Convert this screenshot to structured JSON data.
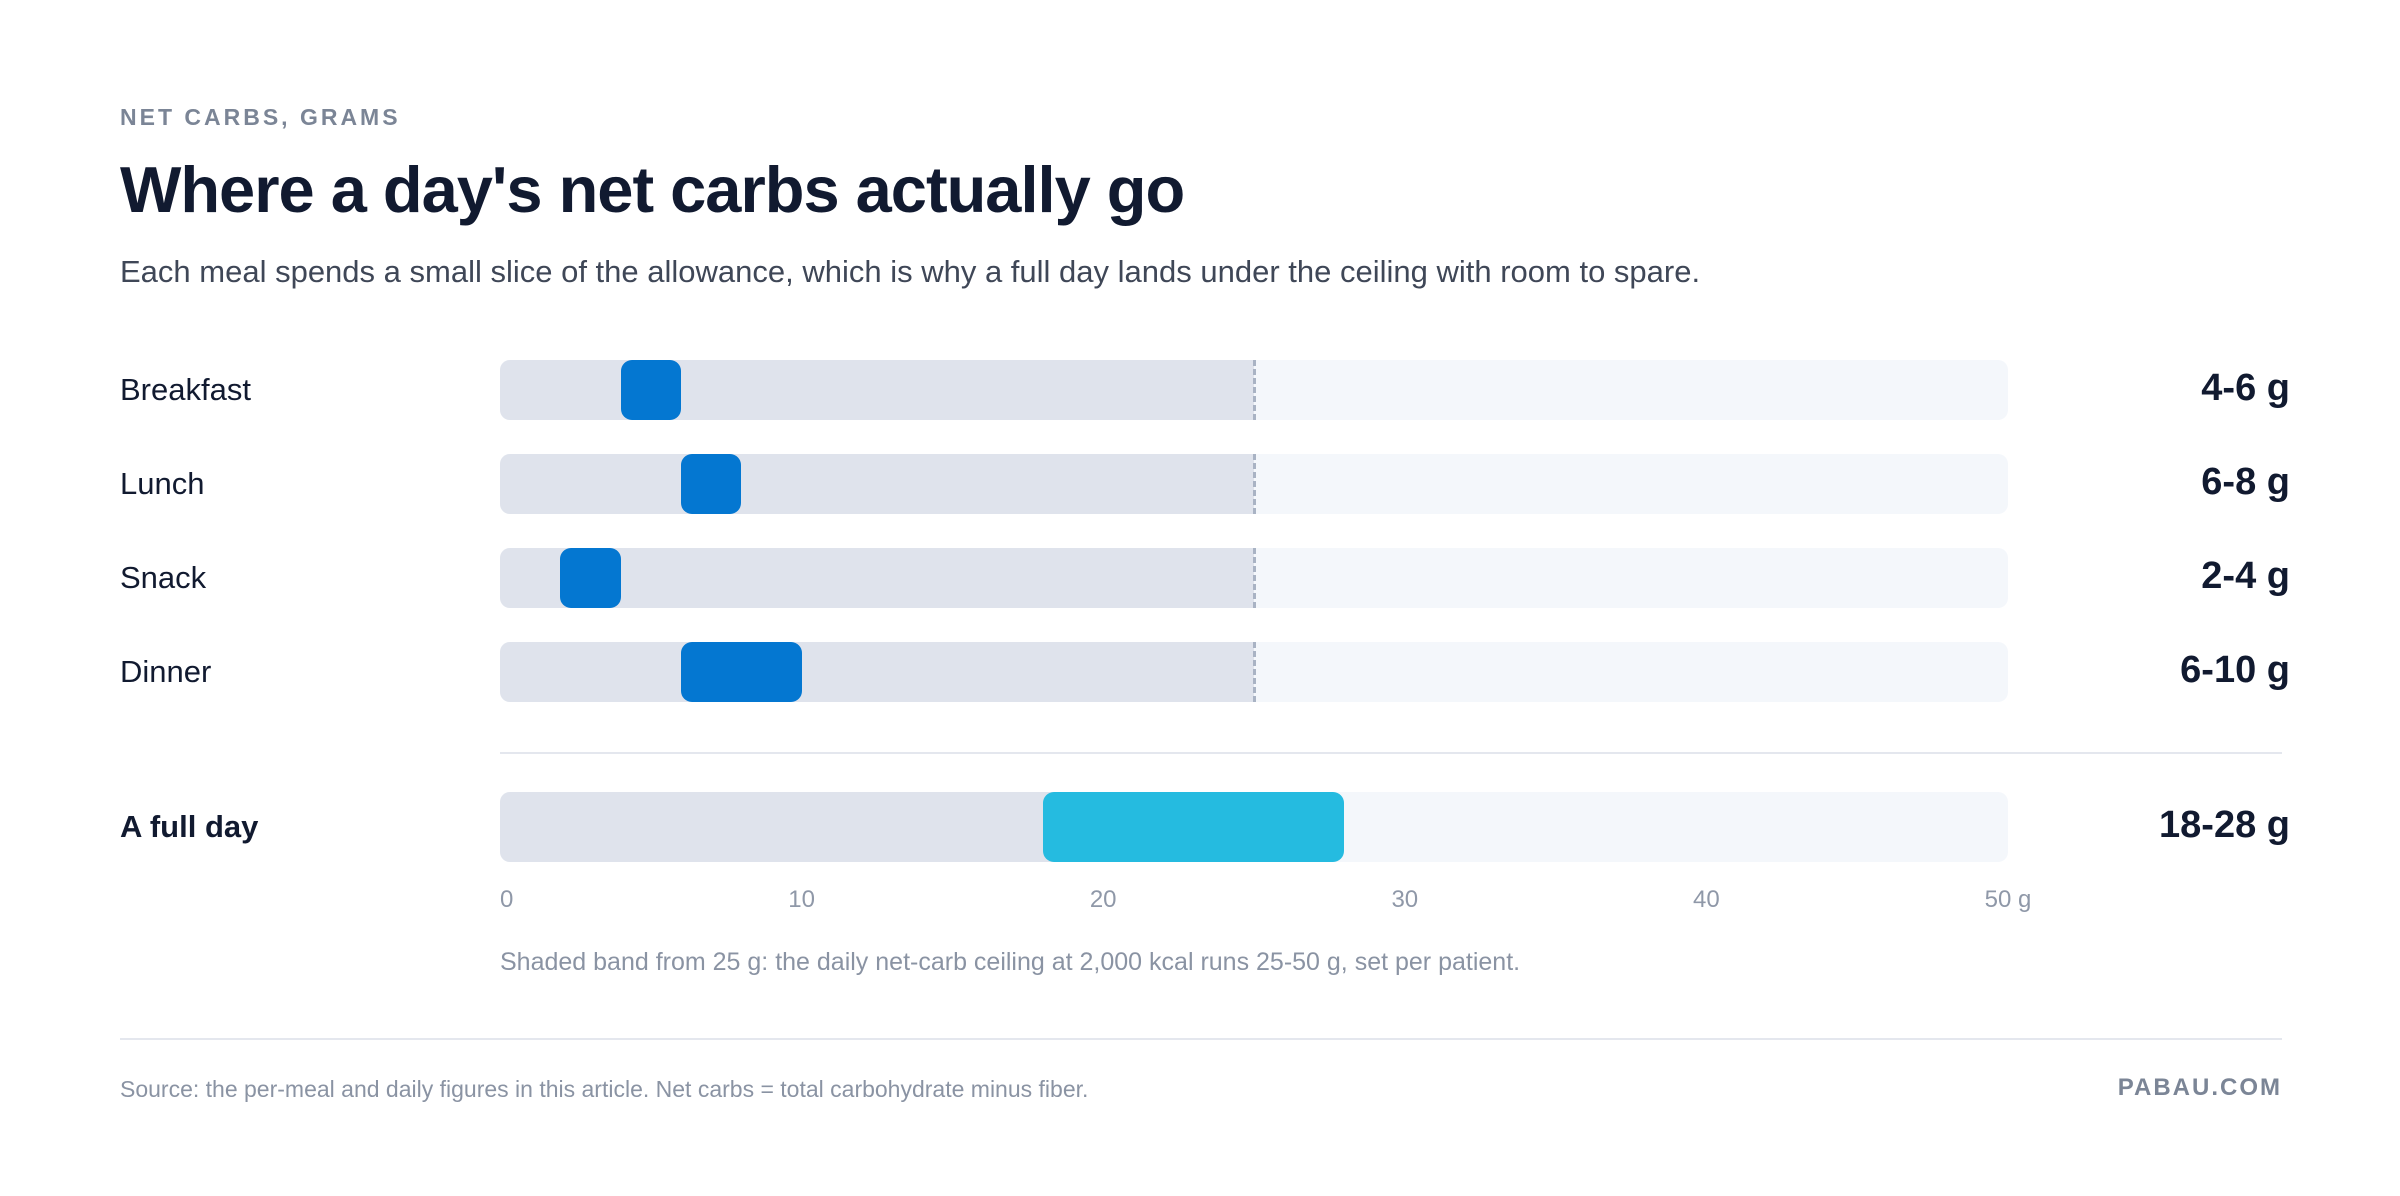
{
  "eyebrow": "NET CARBS, GRAMS",
  "title": "Where a day's net carbs actually go",
  "subtitle": "Each meal spends a small slice of the allowance, which is why a full day lands under the ceiling with room to spare.",
  "note": "Shaded band from 25 g: the daily net-carb ceiling at 2,000 kcal runs 25-50 g, set per patient.",
  "source": "Source: the per-meal and daily figures in this article. Net carbs = total carbohydrate minus fiber.",
  "brand": "PABAU.COM",
  "colors": {
    "meal_range": "#0477d1",
    "day_range": "#25bbe0",
    "below_ceiling": "#dfe3ec",
    "ceiling_band": "#f4f7fb",
    "ceiling_line": "#a9b3c4"
  },
  "chart_data": {
    "type": "range-bar",
    "unit": "g",
    "xlim": [
      0,
      50
    ],
    "ceiling_start": 25,
    "ceiling_end": 50,
    "x_ticks": [
      "0",
      "10",
      "20",
      "30",
      "40",
      "50 g"
    ],
    "grid": false,
    "rows": [
      {
        "label": "Breakfast",
        "min": 4,
        "max": 6,
        "value_label": "4-6 g"
      },
      {
        "label": "Lunch",
        "min": 6,
        "max": 8,
        "value_label": "6-8 g"
      },
      {
        "label": "Snack",
        "min": 2,
        "max": 4,
        "value_label": "2-4 g"
      },
      {
        "label": "Dinner",
        "min": 6,
        "max": 10,
        "value_label": "6-10 g"
      }
    ],
    "total": {
      "label": "A full day",
      "min": 18,
      "max": 28,
      "value_label": "18-28 g"
    }
  }
}
